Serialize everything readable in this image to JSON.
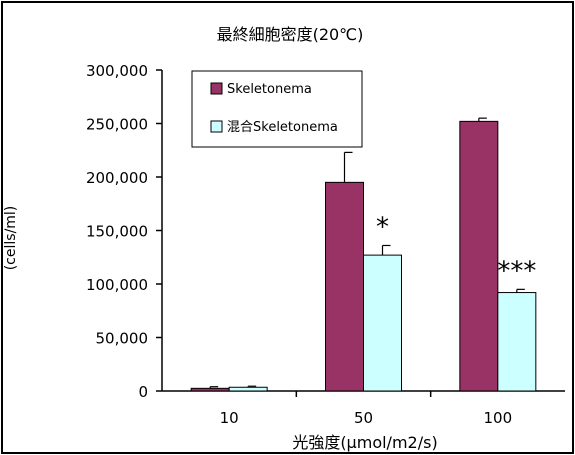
{
  "chart_data": {
    "type": "bar",
    "title": "最終細胞密度(20℃)",
    "xlabel": "光強度(μmol/m2/s)",
    "ylabel": "(cells/ml)",
    "categories": [
      "10",
      "50",
      "100"
    ],
    "ylim": [
      0,
      300000
    ],
    "yticks": [
      0,
      50000,
      100000,
      150000,
      200000,
      250000,
      300000
    ],
    "ytick_labels": [
      "0",
      "50,000",
      "100,000",
      "150,000",
      "200,000",
      "250,000",
      "300,000"
    ],
    "grid": false,
    "legend_position": "top-left",
    "series": [
      {
        "name": "Skeletonema",
        "color": "#993366",
        "values": [
          2500,
          195000,
          252000
        ],
        "errors": [
          1500,
          28000,
          3000
        ]
      },
      {
        "name": "混合Skeletonema",
        "color": "#ccffff",
        "values": [
          3500,
          127000,
          92000
        ],
        "errors": [
          1000,
          9000,
          3000
        ]
      }
    ],
    "annotations": [
      {
        "category": "50",
        "series": 1,
        "text": "*"
      },
      {
        "category": "100",
        "series": 1,
        "text": "***"
      }
    ]
  }
}
